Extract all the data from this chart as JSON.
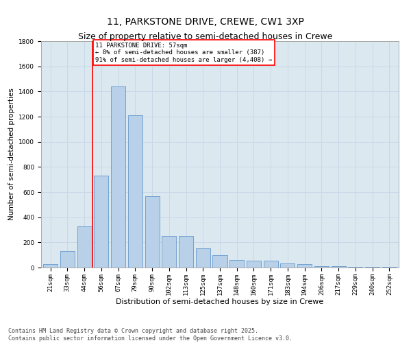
{
  "title": "11, PARKSTONE DRIVE, CREWE, CW1 3XP",
  "subtitle": "Size of property relative to semi-detached houses in Crewe",
  "xlabel": "Distribution of semi-detached houses by size in Crewe",
  "ylabel": "Number of semi-detached properties",
  "categories": [
    "21sqm",
    "33sqm",
    "44sqm",
    "56sqm",
    "67sqm",
    "79sqm",
    "90sqm",
    "102sqm",
    "113sqm",
    "125sqm",
    "137sqm",
    "148sqm",
    "160sqm",
    "171sqm",
    "183sqm",
    "194sqm",
    "206sqm",
    "217sqm",
    "229sqm",
    "240sqm",
    "252sqm"
  ],
  "values": [
    30,
    130,
    330,
    730,
    1440,
    1210,
    570,
    250,
    250,
    155,
    100,
    60,
    55,
    55,
    35,
    30,
    10,
    10,
    5,
    5,
    5
  ],
  "bar_color": "#b8d0e8",
  "bar_edge_color": "#6699cc",
  "grid_color": "#c8d8e8",
  "background_color": "#dce8f0",
  "property_line_x": 2.5,
  "property_line_color": "red",
  "annotation_text": "11 PARKSTONE DRIVE: 57sqm\n← 8% of semi-detached houses are smaller (387)\n91% of semi-detached houses are larger (4,408) →",
  "annotation_box_color": "white",
  "annotation_box_edge": "red",
  "ylim": [
    0,
    1800
  ],
  "yticks": [
    0,
    200,
    400,
    600,
    800,
    1000,
    1200,
    1400,
    1600,
    1800
  ],
  "footer": "Contains HM Land Registry data © Crown copyright and database right 2025.\nContains public sector information licensed under the Open Government Licence v3.0.",
  "title_fontsize": 10,
  "xlabel_fontsize": 8,
  "ylabel_fontsize": 7.5,
  "tick_fontsize": 6.5,
  "annot_fontsize": 6.5,
  "footer_fontsize": 6
}
